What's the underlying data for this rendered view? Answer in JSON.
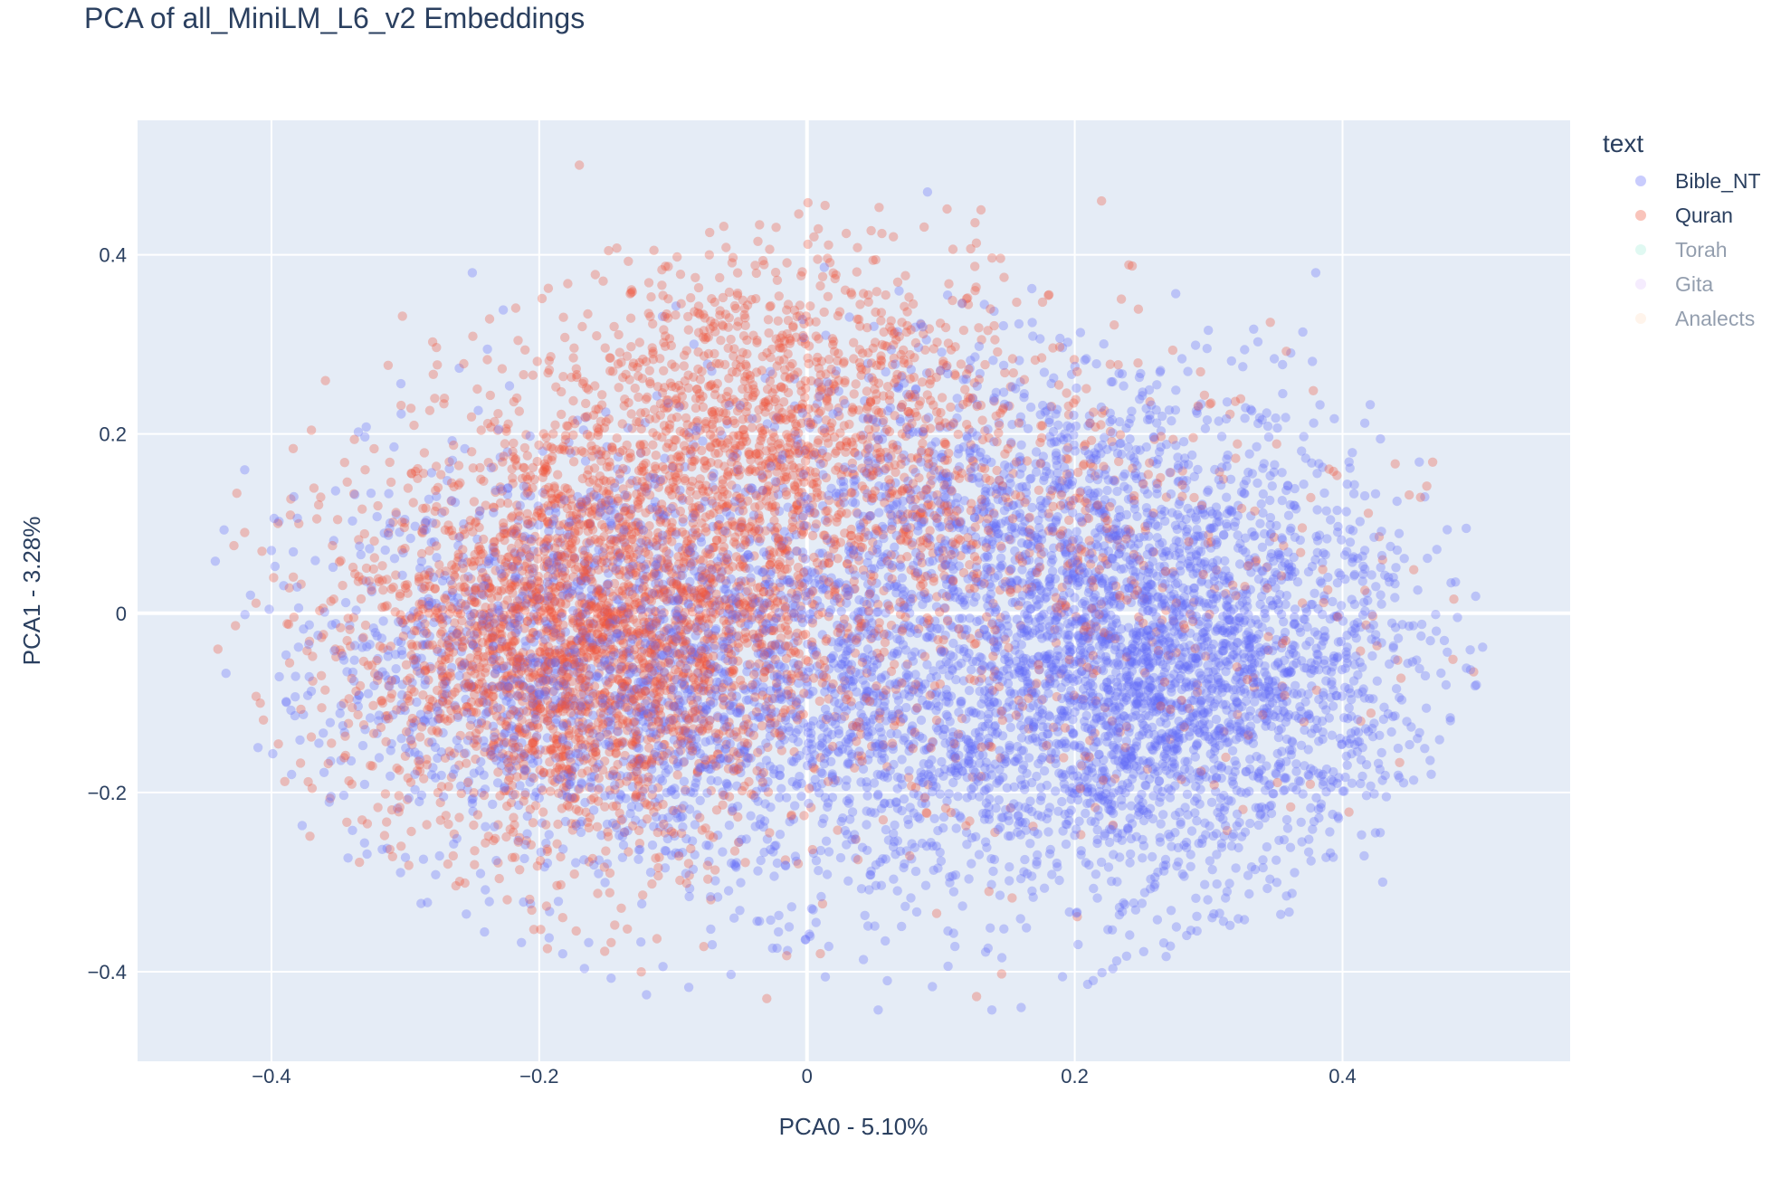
{
  "chart_data": {
    "type": "scatter",
    "title": "PCA of all_MiniLM_L6_v2 Embeddings",
    "xlabel": "PCA0 - 5.10%",
    "ylabel": "PCA1 - 3.28%",
    "xlim": [
      -0.5,
      0.57
    ],
    "ylim": [
      -0.5,
      0.55
    ],
    "x_ticks": [
      -0.4,
      -0.2,
      0,
      0.2,
      0.4
    ],
    "y_ticks": [
      -0.4,
      -0.2,
      0,
      0.2,
      0.4
    ],
    "x_tick_labels": [
      "−0.4",
      "−0.2",
      "0",
      "0.2",
      "0.4"
    ],
    "y_tick_labels": [
      "−0.4",
      "−0.2",
      "0",
      "0.2",
      "0.4"
    ],
    "grid": true,
    "legend_title": "text",
    "legend_position": "top-right",
    "series": [
      {
        "name": "Bible_NT",
        "color": "#636efa",
        "visible": true,
        "clusters": [
          {
            "cx": 0.28,
            "cy": -0.07,
            "sx": 0.09,
            "sy": 0.12,
            "n": 2400
          },
          {
            "cx": 0.05,
            "cy": -0.1,
            "sx": 0.13,
            "sy": 0.12,
            "n": 1700
          },
          {
            "cx": -0.18,
            "cy": -0.05,
            "sx": 0.1,
            "sy": 0.12,
            "n": 1300
          },
          {
            "cx": 0.16,
            "cy": 0.14,
            "sx": 0.11,
            "sy": 0.09,
            "n": 800
          }
        ],
        "outliers": [
          [
            -0.42,
            0.16
          ],
          [
            -0.41,
            -0.15
          ],
          [
            0.16,
            -0.44
          ],
          [
            0.06,
            -0.41
          ],
          [
            0.5,
            -0.08
          ],
          [
            0.47,
            -0.02
          ],
          [
            0.43,
            -0.3
          ],
          [
            -0.4,
            0.07
          ],
          [
            0.09,
            0.47
          ],
          [
            0.05,
            0.32
          ],
          [
            0.38,
            0.38
          ],
          [
            -0.25,
            0.38
          ]
        ]
      },
      {
        "name": "Quran",
        "color": "#ef553b",
        "visible": true,
        "clusters": [
          {
            "cx": -0.17,
            "cy": -0.03,
            "sx": 0.09,
            "sy": 0.12,
            "n": 2600
          },
          {
            "cx": -0.02,
            "cy": 0.22,
            "sx": 0.09,
            "sy": 0.1,
            "n": 1100
          },
          {
            "cx": 0.08,
            "cy": 0.05,
            "sx": 0.16,
            "sy": 0.14,
            "n": 1100
          }
        ],
        "outliers": [
          [
            -0.44,
            -0.04
          ],
          [
            -0.42,
            0.09
          ],
          [
            -0.17,
            0.5
          ],
          [
            -0.03,
            -0.43
          ],
          [
            0.01,
            -0.38
          ],
          [
            0.13,
            0.45
          ],
          [
            -0.07,
            0.32
          ],
          [
            -0.04,
            0.31
          ],
          [
            -0.33,
            0.16
          ],
          [
            -0.32,
            -0.07
          ],
          [
            -0.31,
            -0.09
          ],
          [
            -0.07,
            -0.25
          ],
          [
            0.22,
            0.46
          ]
        ]
      },
      {
        "name": "Torah",
        "color": "#00cc96",
        "visible": false
      },
      {
        "name": "Gita",
        "color": "#ab63fa",
        "visible": false
      },
      {
        "name": "Analects",
        "color": "#ffa15a",
        "visible": false
      }
    ]
  },
  "colors": {
    "plot_bg": "#e5ecf6",
    "grid": "#ffffff",
    "text": "#2a3f5f"
  }
}
